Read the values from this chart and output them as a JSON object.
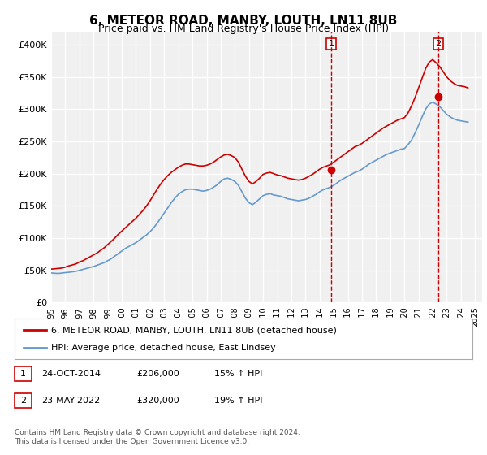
{
  "title": "6, METEOR ROAD, MANBY, LOUTH, LN11 8UB",
  "subtitle": "Price paid vs. HM Land Registry's House Price Index (HPI)",
  "title_fontsize": 11,
  "subtitle_fontsize": 9,
  "ylabel_ticks": [
    "£0",
    "£50K",
    "£100K",
    "£150K",
    "£200K",
    "£250K",
    "£300K",
    "£350K",
    "£400K"
  ],
  "ytick_values": [
    0,
    50000,
    100000,
    150000,
    200000,
    250000,
    300000,
    350000,
    400000
  ],
  "ylim": [
    0,
    420000
  ],
  "xlim_start": 1995.0,
  "xlim_end": 2025.5,
  "background_color": "#ffffff",
  "plot_bg_color": "#f0f0f0",
  "grid_color": "#ffffff",
  "hpi_line_color": "#6699cc",
  "price_line_color": "#cc0000",
  "vline1_x": 2014.82,
  "vline2_x": 2022.39,
  "vline_color": "#cc0000",
  "marker1_x": 2014.82,
  "marker1_y": 206000,
  "marker2_x": 2022.39,
  "marker2_y": 320000,
  "annotation1_label": "1",
  "annotation2_label": "2",
  "legend_line1": "6, METEOR ROAD, MANBY, LOUTH, LN11 8UB (detached house)",
  "legend_line2": "HPI: Average price, detached house, East Lindsey",
  "table_row1_num": "1",
  "table_row1_date": "24-OCT-2014",
  "table_row1_price": "£206,000",
  "table_row1_hpi": "15% ↑ HPI",
  "table_row2_num": "2",
  "table_row2_date": "23-MAY-2022",
  "table_row2_price": "£320,000",
  "table_row2_hpi": "19% ↑ HPI",
  "footer": "Contains HM Land Registry data © Crown copyright and database right 2024.\nThis data is licensed under the Open Government Licence v3.0.",
  "hpi_data_x": [
    1995.0,
    1995.25,
    1995.5,
    1995.75,
    1996.0,
    1996.25,
    1996.5,
    1996.75,
    1997.0,
    1997.25,
    1997.5,
    1997.75,
    1998.0,
    1998.25,
    1998.5,
    1998.75,
    1999.0,
    1999.25,
    1999.5,
    1999.75,
    2000.0,
    2000.25,
    2000.5,
    2000.75,
    2001.0,
    2001.25,
    2001.5,
    2001.75,
    2002.0,
    2002.25,
    2002.5,
    2002.75,
    2003.0,
    2003.25,
    2003.5,
    2003.75,
    2004.0,
    2004.25,
    2004.5,
    2004.75,
    2005.0,
    2005.25,
    2005.5,
    2005.75,
    2006.0,
    2006.25,
    2006.5,
    2006.75,
    2007.0,
    2007.25,
    2007.5,
    2007.75,
    2008.0,
    2008.25,
    2008.5,
    2008.75,
    2009.0,
    2009.25,
    2009.5,
    2009.75,
    2010.0,
    2010.25,
    2010.5,
    2010.75,
    2011.0,
    2011.25,
    2011.5,
    2011.75,
    2012.0,
    2012.25,
    2012.5,
    2012.75,
    2013.0,
    2013.25,
    2013.5,
    2013.75,
    2014.0,
    2014.25,
    2014.5,
    2014.75,
    2015.0,
    2015.25,
    2015.5,
    2015.75,
    2016.0,
    2016.25,
    2016.5,
    2016.75,
    2017.0,
    2017.25,
    2017.5,
    2017.75,
    2018.0,
    2018.25,
    2018.5,
    2018.75,
    2019.0,
    2019.25,
    2019.5,
    2019.75,
    2020.0,
    2020.25,
    2020.5,
    2020.75,
    2021.0,
    2021.25,
    2021.5,
    2021.75,
    2022.0,
    2022.25,
    2022.5,
    2022.75,
    2023.0,
    2023.25,
    2023.5,
    2023.75,
    2024.0,
    2024.25,
    2024.5
  ],
  "hpi_data_y": [
    46000,
    45500,
    45200,
    45800,
    46500,
    47000,
    47800,
    48500,
    50000,
    51500,
    53000,
    54500,
    56000,
    58000,
    60000,
    62000,
    65000,
    68000,
    72000,
    76000,
    80000,
    84000,
    87000,
    90000,
    93000,
    97000,
    101000,
    105000,
    110000,
    116000,
    123000,
    131000,
    139000,
    147000,
    155000,
    162000,
    168000,
    172000,
    175000,
    176000,
    176000,
    175000,
    174000,
    173000,
    174000,
    176000,
    179000,
    183000,
    188000,
    192000,
    193000,
    191000,
    188000,
    182000,
    172000,
    162000,
    155000,
    152000,
    156000,
    161000,
    166000,
    168000,
    169000,
    167000,
    166000,
    165000,
    163000,
    161000,
    160000,
    159000,
    158000,
    159000,
    160000,
    162000,
    165000,
    168000,
    172000,
    175000,
    177000,
    179000,
    182000,
    186000,
    190000,
    193000,
    196000,
    199000,
    202000,
    204000,
    207000,
    211000,
    215000,
    218000,
    221000,
    224000,
    227000,
    230000,
    232000,
    234000,
    236000,
    238000,
    239000,
    245000,
    252000,
    263000,
    275000,
    288000,
    300000,
    308000,
    311000,
    308000,
    304000,
    298000,
    292000,
    288000,
    285000,
    283000,
    282000,
    281000,
    280000
  ],
  "price_data_x": [
    1995.0,
    1995.25,
    1995.5,
    1995.75,
    1996.0,
    1996.25,
    1996.5,
    1996.75,
    1997.0,
    1997.25,
    1997.5,
    1997.75,
    1998.0,
    1998.25,
    1998.5,
    1998.75,
    1999.0,
    1999.25,
    1999.5,
    1999.75,
    2000.0,
    2000.25,
    2000.5,
    2000.75,
    2001.0,
    2001.25,
    2001.5,
    2001.75,
    2002.0,
    2002.25,
    2002.5,
    2002.75,
    2003.0,
    2003.25,
    2003.5,
    2003.75,
    2004.0,
    2004.25,
    2004.5,
    2004.75,
    2005.0,
    2005.25,
    2005.5,
    2005.75,
    2006.0,
    2006.25,
    2006.5,
    2006.75,
    2007.0,
    2007.25,
    2007.5,
    2007.75,
    2008.0,
    2008.25,
    2008.5,
    2008.75,
    2009.0,
    2009.25,
    2009.5,
    2009.75,
    2010.0,
    2010.25,
    2010.5,
    2010.75,
    2011.0,
    2011.25,
    2011.5,
    2011.75,
    2012.0,
    2012.25,
    2012.5,
    2012.75,
    2013.0,
    2013.25,
    2013.5,
    2013.75,
    2014.0,
    2014.25,
    2014.5,
    2014.75,
    2015.0,
    2015.25,
    2015.5,
    2015.75,
    2016.0,
    2016.25,
    2016.5,
    2016.75,
    2017.0,
    2017.25,
    2017.5,
    2017.75,
    2018.0,
    2018.25,
    2018.5,
    2018.75,
    2019.0,
    2019.25,
    2019.5,
    2019.75,
    2020.0,
    2020.25,
    2020.5,
    2020.75,
    2021.0,
    2021.25,
    2021.5,
    2021.75,
    2022.0,
    2022.25,
    2022.5,
    2022.75,
    2023.0,
    2023.25,
    2023.5,
    2023.75,
    2024.0,
    2024.25,
    2024.5
  ],
  "price_data_y": [
    52000,
    52500,
    53000,
    53500,
    55000,
    57000,
    58500,
    60000,
    63000,
    65000,
    68000,
    71000,
    74000,
    77000,
    81000,
    85000,
    90000,
    95000,
    100000,
    106000,
    111000,
    116000,
    121000,
    126000,
    131000,
    137000,
    143000,
    150000,
    158000,
    167000,
    176000,
    184000,
    191000,
    197000,
    202000,
    206000,
    210000,
    213000,
    215000,
    215000,
    214000,
    213000,
    212000,
    212000,
    213000,
    215000,
    218000,
    222000,
    226000,
    229000,
    230000,
    228000,
    225000,
    218000,
    207000,
    196000,
    188000,
    184000,
    188000,
    193000,
    199000,
    201000,
    202000,
    200000,
    198000,
    197000,
    195000,
    193000,
    192000,
    191000,
    190000,
    191000,
    193000,
    196000,
    199000,
    203000,
    207000,
    210000,
    212000,
    214000,
    218000,
    222000,
    226000,
    230000,
    234000,
    238000,
    242000,
    244000,
    247000,
    251000,
    255000,
    259000,
    263000,
    267000,
    271000,
    274000,
    277000,
    280000,
    283000,
    285000,
    287000,
    294000,
    305000,
    318000,
    333000,
    348000,
    363000,
    373000,
    377000,
    372000,
    366000,
    358000,
    350000,
    344000,
    340000,
    337000,
    336000,
    335000,
    333000
  ]
}
